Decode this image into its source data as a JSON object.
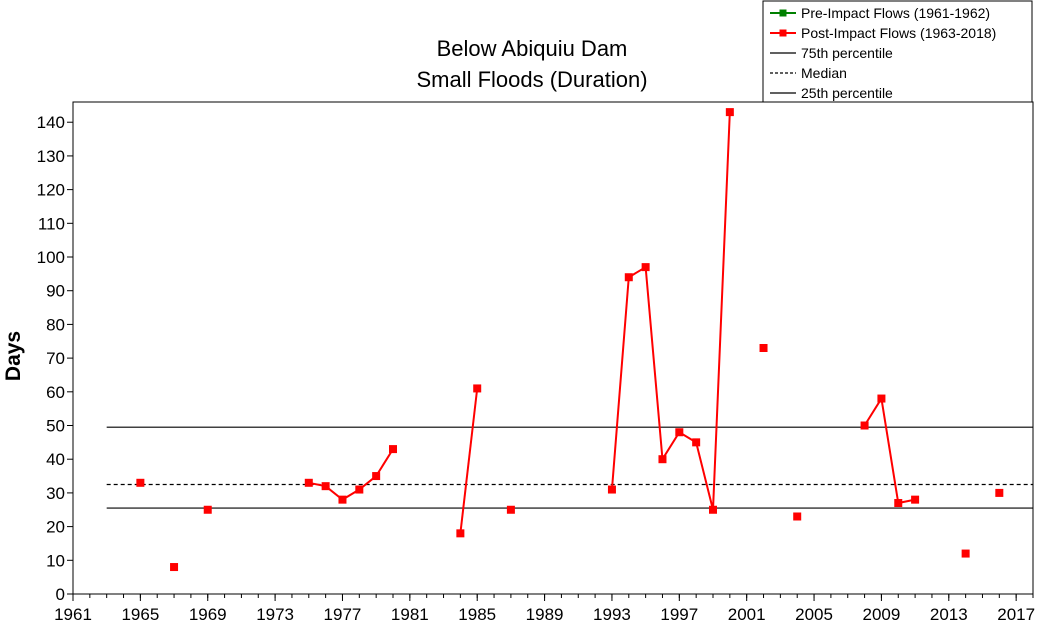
{
  "chart_data": {
    "type": "line",
    "title_lines": [
      "Below Abiquiu Dam",
      "Small Floods (Duration)"
    ],
    "xlabel": "",
    "ylabel": "Days",
    "xlim": [
      1961,
      2018
    ],
    "ylim": [
      0,
      146
    ],
    "x_ticks": [
      "1961",
      "1965",
      "1969",
      "1973",
      "1977",
      "1981",
      "1985",
      "1989",
      "1993",
      "1997",
      "2001",
      "2005",
      "2009",
      "2013",
      "2017"
    ],
    "y_ticks": [
      "0",
      "10",
      "20",
      "30",
      "40",
      "50",
      "60",
      "70",
      "80",
      "90",
      "100",
      "110",
      "120",
      "130",
      "140"
    ],
    "legend_position": "top-right",
    "legend": [
      {
        "key": "pre",
        "label": "Pre-Impact Flows (1961-1962)",
        "color": "#008000",
        "style": "line-marker"
      },
      {
        "key": "post",
        "label": "Post-Impact Flows (1963-2018)",
        "color": "#ff0000",
        "style": "line-marker"
      },
      {
        "key": "p75",
        "label": "75th percentile",
        "color": "#000000",
        "style": "solid"
      },
      {
        "key": "median",
        "label": "Median",
        "color": "#000000",
        "style": "dashed"
      },
      {
        "key": "p25",
        "label": "25th percentile",
        "color": "#000000",
        "style": "solid"
      }
    ],
    "reference_lines": [
      {
        "key": "p75",
        "value": 49.5,
        "style": "solid",
        "from_year": 1963
      },
      {
        "key": "median",
        "value": 32.5,
        "style": "dashed",
        "from_year": 1963
      },
      {
        "key": "p25",
        "value": 25.5,
        "style": "solid",
        "from_year": 1963
      }
    ],
    "series": [
      {
        "name": "Post-Impact Flows (1963-2018)",
        "color": "#ff0000",
        "points": [
          [
            1965,
            33
          ],
          [
            1967,
            8
          ],
          [
            1969,
            25
          ],
          [
            1975,
            33
          ],
          [
            1976,
            32
          ],
          [
            1977,
            28
          ],
          [
            1978,
            31
          ],
          [
            1979,
            35
          ],
          [
            1980,
            43
          ],
          [
            1984,
            18
          ],
          [
            1985,
            61
          ],
          [
            1987,
            25
          ],
          [
            1993,
            31
          ],
          [
            1994,
            94
          ],
          [
            1995,
            97
          ],
          [
            1996,
            40
          ],
          [
            1997,
            48
          ],
          [
            1998,
            45
          ],
          [
            1999,
            25
          ],
          [
            2000,
            143
          ],
          [
            2002,
            73
          ],
          [
            2004,
            23
          ],
          [
            2008,
            50
          ],
          [
            2009,
            58
          ],
          [
            2010,
            27
          ],
          [
            2011,
            28
          ],
          [
            2014,
            12
          ],
          [
            2016,
            30
          ]
        ]
      }
    ]
  }
}
